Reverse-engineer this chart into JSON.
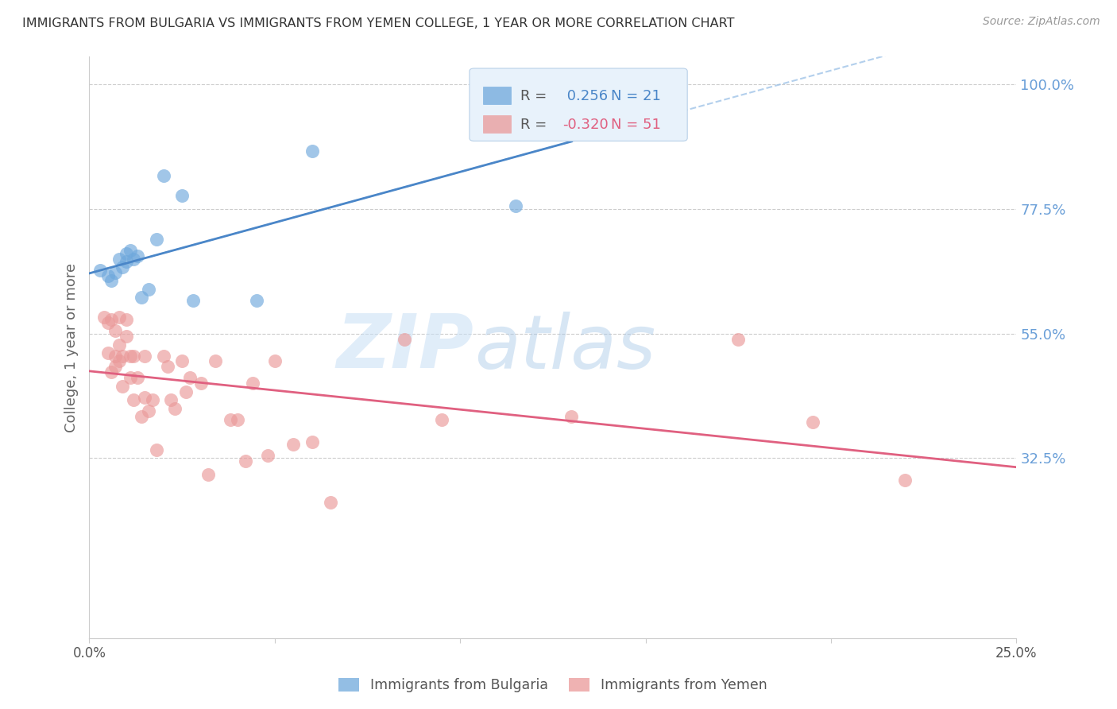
{
  "title": "IMMIGRANTS FROM BULGARIA VS IMMIGRANTS FROM YEMEN COLLEGE, 1 YEAR OR MORE CORRELATION CHART",
  "source": "Source: ZipAtlas.com",
  "ylabel": "College, 1 year or more",
  "x_min": 0.0,
  "x_max": 0.25,
  "y_min": 0.0,
  "y_max": 1.05,
  "x_ticks": [
    0.0,
    0.05,
    0.1,
    0.15,
    0.2,
    0.25
  ],
  "x_tick_labels": [
    "0.0%",
    "",
    "",
    "",
    "",
    "25.0%"
  ],
  "y_ticks": [
    0.325,
    0.55,
    0.775,
    1.0
  ],
  "y_tick_labels": [
    "32.5%",
    "55.0%",
    "77.5%",
    "100.0%"
  ],
  "bulgaria_R": 0.256,
  "bulgaria_N": 21,
  "yemen_R": -0.32,
  "yemen_N": 51,
  "bulgaria_color": "#6fa8dc",
  "yemen_color": "#ea9999",
  "bulgaria_line_color": "#4a86c8",
  "yemen_line_color": "#e06080",
  "dashed_line_color": "#a0c4e8",
  "background_color": "#ffffff",
  "grid_color": "#cccccc",
  "right_axis_color": "#6a9fd8",
  "title_color": "#333333",
  "watermark_zip": "ZIP",
  "watermark_atlas": "atlas",
  "legend_bg": "#e8f2fb",
  "legend_border": "#b8d0e8",
  "bulgaria_x": [
    0.003,
    0.005,
    0.006,
    0.007,
    0.008,
    0.009,
    0.01,
    0.01,
    0.011,
    0.012,
    0.013,
    0.014,
    0.016,
    0.018,
    0.02,
    0.025,
    0.028,
    0.045,
    0.06,
    0.115,
    0.13
  ],
  "bulgaria_y": [
    0.665,
    0.655,
    0.645,
    0.66,
    0.685,
    0.67,
    0.68,
    0.695,
    0.7,
    0.685,
    0.69,
    0.615,
    0.63,
    0.72,
    0.835,
    0.8,
    0.61,
    0.61,
    0.88,
    0.78,
    0.96
  ],
  "yemen_x": [
    0.004,
    0.005,
    0.005,
    0.006,
    0.006,
    0.007,
    0.007,
    0.007,
    0.008,
    0.008,
    0.008,
    0.009,
    0.009,
    0.01,
    0.01,
    0.011,
    0.011,
    0.012,
    0.012,
    0.013,
    0.014,
    0.015,
    0.015,
    0.016,
    0.017,
    0.018,
    0.02,
    0.021,
    0.022,
    0.023,
    0.025,
    0.026,
    0.027,
    0.03,
    0.032,
    0.034,
    0.038,
    0.04,
    0.042,
    0.044,
    0.048,
    0.05,
    0.055,
    0.06,
    0.065,
    0.085,
    0.095,
    0.13,
    0.175,
    0.195,
    0.22
  ],
  "yemen_y": [
    0.58,
    0.515,
    0.57,
    0.48,
    0.575,
    0.51,
    0.555,
    0.49,
    0.5,
    0.53,
    0.58,
    0.455,
    0.51,
    0.545,
    0.575,
    0.47,
    0.51,
    0.43,
    0.51,
    0.47,
    0.4,
    0.51,
    0.435,
    0.41,
    0.43,
    0.34,
    0.51,
    0.49,
    0.43,
    0.415,
    0.5,
    0.445,
    0.47,
    0.46,
    0.295,
    0.5,
    0.395,
    0.395,
    0.32,
    0.46,
    0.33,
    0.5,
    0.35,
    0.355,
    0.245,
    0.54,
    0.395,
    0.4,
    0.54,
    0.39,
    0.285
  ]
}
